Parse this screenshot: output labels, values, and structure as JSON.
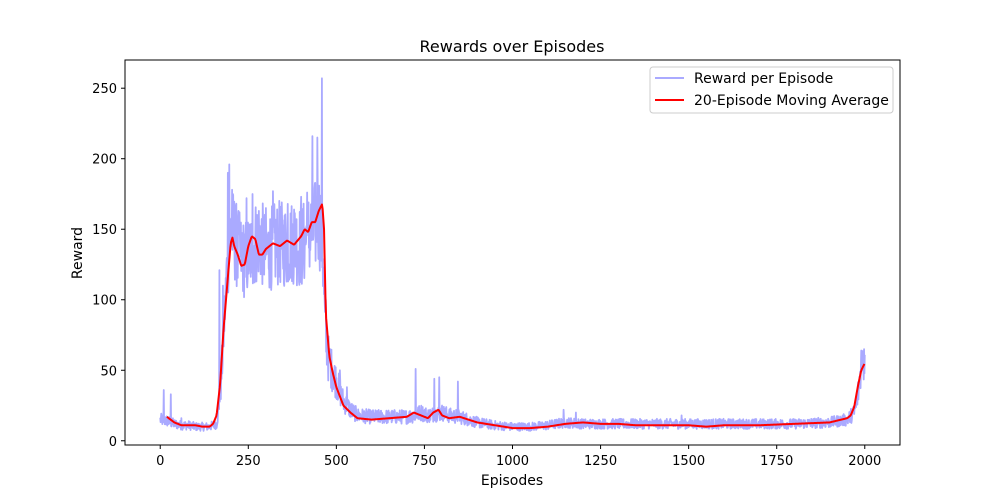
{
  "chart_data": {
    "type": "line",
    "title": "Rewards over Episodes",
    "xlabel": "Episodes",
    "ylabel": "Reward",
    "xlim": [
      -100,
      2100
    ],
    "ylim": [
      -3,
      270
    ],
    "xticks": [
      0,
      250,
      500,
      750,
      1000,
      1250,
      1500,
      1750,
      2000
    ],
    "yticks": [
      0,
      50,
      100,
      150,
      200,
      250
    ],
    "grid": false,
    "legend_position": "top-right",
    "series": [
      {
        "name": "Reward per Episode",
        "color": "#aaaaff",
        "style": "noisy",
        "x": [
          0,
          20,
          40,
          60,
          80,
          100,
          120,
          140,
          160,
          170,
          180,
          190,
          200,
          210,
          220,
          240,
          260,
          280,
          300,
          320,
          340,
          360,
          380,
          400,
          420,
          440,
          450,
          460,
          470,
          480,
          500,
          520,
          540,
          560,
          600,
          650,
          700,
          720,
          740,
          760,
          780,
          800,
          820,
          850,
          900,
          950,
          1000,
          1050,
          1100,
          1150,
          1200,
          1250,
          1300,
          1350,
          1400,
          1500,
          1600,
          1700,
          1800,
          1900,
          1950,
          1970,
          1980,
          1990,
          2000
        ],
        "values": [
          15,
          14,
          12,
          11,
          11,
          10,
          10,
          10,
          12,
          30,
          75,
          125,
          150,
          145,
          135,
          128,
          135,
          145,
          133,
          138,
          140,
          138,
          142,
          137,
          145,
          152,
          160,
          140,
          70,
          55,
          42,
          28,
          22,
          18,
          17,
          17,
          17,
          18,
          20,
          18,
          19,
          20,
          18,
          17,
          13,
          11,
          10,
          10,
          11,
          13,
          12,
          12,
          12,
          12,
          12,
          12,
          12,
          12,
          12,
          13,
          15,
          20,
          32,
          52,
          60
        ],
        "spikes": [
          {
            "x": 10,
            "y": 36
          },
          {
            "x": 30,
            "y": 33
          },
          {
            "x": 60,
            "y": 16
          },
          {
            "x": 168,
            "y": 121
          },
          {
            "x": 178,
            "y": 110
          },
          {
            "x": 192,
            "y": 190
          },
          {
            "x": 196,
            "y": 196
          },
          {
            "x": 204,
            "y": 178
          },
          {
            "x": 222,
            "y": 163
          },
          {
            "x": 245,
            "y": 172
          },
          {
            "x": 262,
            "y": 175
          },
          {
            "x": 280,
            "y": 163
          },
          {
            "x": 300,
            "y": 165
          },
          {
            "x": 320,
            "y": 177
          },
          {
            "x": 340,
            "y": 158
          },
          {
            "x": 362,
            "y": 168
          },
          {
            "x": 380,
            "y": 164
          },
          {
            "x": 400,
            "y": 173
          },
          {
            "x": 417,
            "y": 176
          },
          {
            "x": 432,
            "y": 216
          },
          {
            "x": 446,
            "y": 215
          },
          {
            "x": 459,
            "y": 257
          },
          {
            "x": 470,
            "y": 100
          },
          {
            "x": 482,
            "y": 65
          },
          {
            "x": 510,
            "y": 50
          },
          {
            "x": 530,
            "y": 38
          },
          {
            "x": 725,
            "y": 51
          },
          {
            "x": 778,
            "y": 44
          },
          {
            "x": 792,
            "y": 45
          },
          {
            "x": 845,
            "y": 42
          },
          {
            "x": 1145,
            "y": 22
          },
          {
            "x": 1180,
            "y": 20
          },
          {
            "x": 1480,
            "y": 18
          },
          {
            "x": 1990,
            "y": 64
          },
          {
            "x": 1998,
            "y": 65
          }
        ]
      },
      {
        "name": "20-Episode Moving Average",
        "color": "#ff0000",
        "style": "smooth",
        "x": [
          19,
          40,
          60,
          80,
          100,
          120,
          140,
          150,
          160,
          170,
          180,
          190,
          200,
          205,
          210,
          220,
          230,
          240,
          250,
          260,
          270,
          280,
          290,
          300,
          320,
          340,
          360,
          380,
          400,
          410,
          420,
          430,
          440,
          450,
          460,
          465,
          470,
          480,
          490,
          500,
          520,
          540,
          560,
          600,
          650,
          700,
          720,
          740,
          760,
          775,
          790,
          800,
          820,
          850,
          900,
          950,
          1000,
          1050,
          1100,
          1150,
          1200,
          1250,
          1300,
          1350,
          1400,
          1500,
          1550,
          1600,
          1700,
          1800,
          1900,
          1950,
          1960,
          1970,
          1980,
          1990,
          2000
        ],
        "values": [
          17,
          13,
          11,
          11,
          11,
          10,
          10,
          12,
          18,
          40,
          80,
          110,
          140,
          144,
          138,
          132,
          124,
          125,
          138,
          145,
          143,
          132,
          132,
          136,
          140,
          138,
          142,
          139,
          145,
          150,
          148,
          155,
          155,
          163,
          168,
          150,
          90,
          60,
          48,
          38,
          25,
          20,
          16,
          15,
          16,
          17,
          20,
          18,
          16,
          20,
          22,
          18,
          16,
          17,
          13,
          11,
          9,
          9,
          10,
          12,
          13,
          12,
          12,
          11,
          11,
          11,
          10,
          11,
          11,
          12,
          13,
          16,
          18,
          24,
          38,
          50,
          55
        ]
      }
    ]
  }
}
